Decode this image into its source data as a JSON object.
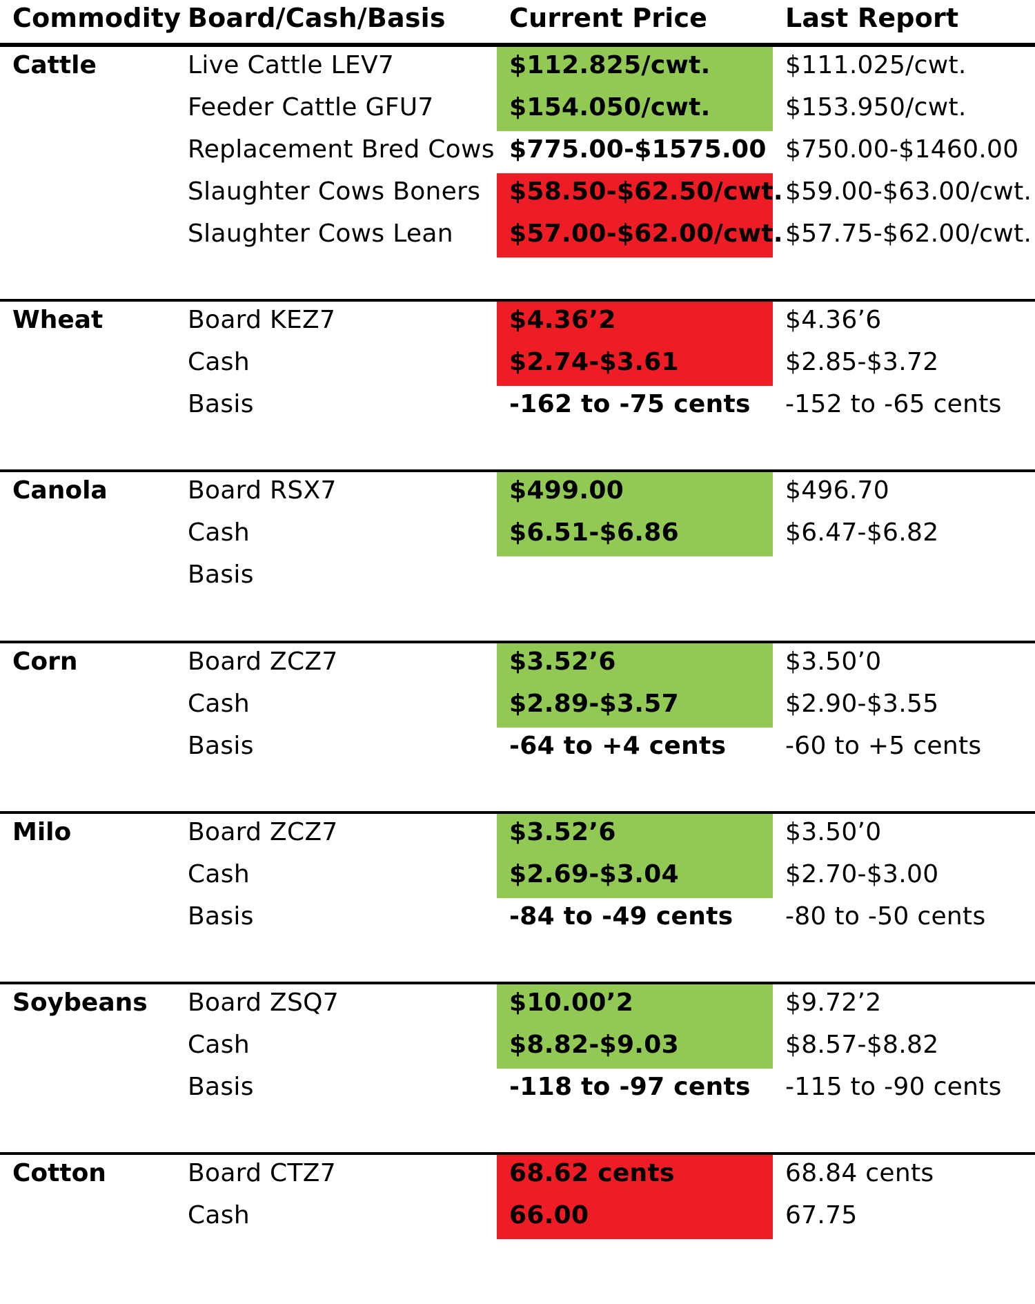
{
  "headers": {
    "commodity": "Commodity",
    "board": "Board/Cash/Basis",
    "current": "Current Price",
    "last": "Last Report"
  },
  "colors": {
    "up": "#92c954",
    "down": "#ee1c24"
  },
  "groups": [
    {
      "name": "Cattle",
      "rows": [
        {
          "label": "Live Cattle LEV7",
          "current": "$112.825/cwt.",
          "last": "$111.025/cwt.",
          "status": "green"
        },
        {
          "label": "Feeder Cattle GFU7",
          "current": "$154.050/cwt.",
          "last": "$153.950/cwt.",
          "status": "green"
        },
        {
          "label": "Replacement Bred Cows",
          "current": "$775.00-$1575.00",
          "last": "$750.00-$1460.00",
          "status": "none"
        },
        {
          "label": "Slaughter Cows Boners",
          "current": "$58.50-$62.50/cwt.",
          "last": "$59.00-$63.00/cwt.",
          "status": "red"
        },
        {
          "label": "Slaughter Cows Lean",
          "current": "$57.00-$62.00/cwt.",
          "last": "$57.75-$62.00/cwt.",
          "status": "red"
        }
      ]
    },
    {
      "name": "Wheat",
      "rows": [
        {
          "label": "Board KEZ7",
          "current": "$4.36’2",
          "last": "$4.36’6",
          "status": "red"
        },
        {
          "label": "Cash",
          "current": "$2.74-$3.61",
          "last": "$2.85-$3.72",
          "status": "red"
        },
        {
          "label": "Basis",
          "current": "-162 to -75 cents",
          "last": "-152 to -65 cents",
          "status": "none"
        }
      ]
    },
    {
      "name": "Canola",
      "rows": [
        {
          "label": "Board RSX7",
          "current": "$499.00",
          "last": "$496.70",
          "status": "green"
        },
        {
          "label": "Cash",
          "current": "$6.51-$6.86",
          "last": "$6.47-$6.82",
          "status": "green"
        },
        {
          "label": "Basis",
          "current": "",
          "last": "",
          "status": "none"
        }
      ]
    },
    {
      "name": "Corn",
      "rows": [
        {
          "label": "Board ZCZ7",
          "current": "$3.52’6",
          "last": "$3.50’0",
          "status": "green"
        },
        {
          "label": "Cash",
          "current": "$2.89-$3.57",
          "last": "$2.90-$3.55",
          "status": "green"
        },
        {
          "label": "Basis",
          "current": "-64 to +4 cents",
          "last": "-60 to +5 cents",
          "status": "none"
        }
      ]
    },
    {
      "name": "Milo",
      "rows": [
        {
          "label": "Board ZCZ7",
          "current": "$3.52’6",
          "last": "$3.50’0",
          "status": "green"
        },
        {
          "label": "Cash",
          "current": "$2.69-$3.04",
          "last": "$2.70-$3.00",
          "status": "green"
        },
        {
          "label": "Basis",
          "current": "-84 to -49 cents",
          "last": "-80 to -50 cents",
          "status": "none"
        }
      ]
    },
    {
      "name": "Soybeans",
      "rows": [
        {
          "label": "Board ZSQ7",
          "current": "$10.00’2",
          "last": "$9.72’2",
          "status": "green"
        },
        {
          "label": "Cash",
          "current": "$8.82-$9.03",
          "last": "$8.57-$8.82",
          "status": "green"
        },
        {
          "label": "Basis",
          "current": "-118 to -97 cents",
          "last": "-115 to -90 cents",
          "status": "none"
        }
      ]
    },
    {
      "name": "Cotton",
      "rows": [
        {
          "label": "Board CTZ7",
          "current": "68.62 cents",
          "last": "68.84 cents",
          "status": "red"
        },
        {
          "label": "Cash",
          "current": "66.00",
          "last": "67.75",
          "status": "red"
        }
      ]
    }
  ]
}
